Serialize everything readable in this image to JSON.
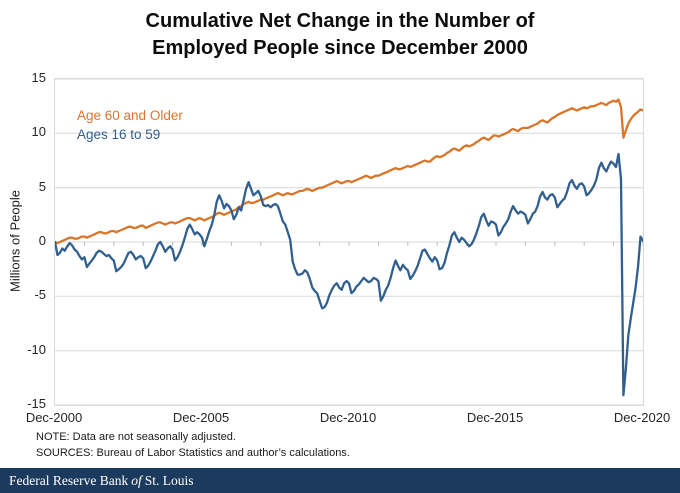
{
  "title": {
    "line1": "Cumulative Net Change in the Number of",
    "line2": "Employed People since December 2000"
  },
  "chart_data": {
    "type": "line",
    "title": "Cumulative Net Change in the Number of Employed People since December 2000",
    "xlabel": "",
    "ylabel": "Millions of People",
    "ylim": [
      -15,
      15
    ],
    "yticks": [
      15,
      10,
      5,
      0,
      -5,
      -10,
      -15
    ],
    "x_unit": "month",
    "x_start": "Dec-2000",
    "x_end": "Dec-2020",
    "x_tick_labels": [
      "Dec-2000",
      "Dec-2005",
      "Dec-2010",
      "Dec-2015",
      "Dec-2020"
    ],
    "x_tick_interval_months": 60,
    "minor_tick_interval_months": 12,
    "grid": true,
    "grid_color": "#d9d9d9",
    "tick_color": "#bfbfbf",
    "legend_position": "top-left-inside",
    "series": [
      {
        "name": "Age 60 and Older",
        "color": "#d9762b",
        "values": [
          0.0,
          -0.1,
          0.0,
          0.1,
          0.2,
          0.3,
          0.4,
          0.4,
          0.3,
          0.3,
          0.4,
          0.5,
          0.5,
          0.4,
          0.5,
          0.6,
          0.7,
          0.8,
          0.9,
          0.9,
          0.8,
          0.8,
          0.9,
          1.0,
          1.0,
          0.9,
          1.0,
          1.1,
          1.2,
          1.3,
          1.4,
          1.4,
          1.3,
          1.3,
          1.4,
          1.5,
          1.5,
          1.3,
          1.4,
          1.5,
          1.6,
          1.7,
          1.8,
          1.8,
          1.7,
          1.6,
          1.7,
          1.8,
          1.8,
          1.7,
          1.8,
          1.9,
          2.0,
          2.1,
          2.2,
          2.2,
          2.1,
          2.0,
          2.1,
          2.2,
          2.1,
          2.0,
          2.1,
          2.2,
          2.3,
          2.4,
          2.6,
          2.7,
          2.6,
          2.5,
          2.6,
          2.7,
          2.8,
          2.9,
          3.0,
          3.2,
          3.3,
          3.5,
          3.6,
          3.7,
          3.6,
          3.6,
          3.7,
          3.8,
          3.9,
          3.9,
          4.0,
          4.1,
          4.2,
          4.3,
          4.4,
          4.5,
          4.4,
          4.3,
          4.4,
          4.5,
          4.4,
          4.4,
          4.5,
          4.6,
          4.7,
          4.7,
          4.8,
          4.9,
          4.8,
          4.7,
          4.8,
          4.9,
          5.0,
          5.0,
          5.1,
          5.2,
          5.3,
          5.4,
          5.5,
          5.6,
          5.5,
          5.4,
          5.5,
          5.6,
          5.6,
          5.5,
          5.6,
          5.7,
          5.8,
          5.9,
          6.0,
          6.1,
          6.0,
          5.9,
          6.0,
          6.1,
          6.1,
          6.2,
          6.3,
          6.4,
          6.5,
          6.6,
          6.7,
          6.8,
          6.7,
          6.7,
          6.8,
          6.9,
          7.0,
          6.9,
          7.0,
          7.1,
          7.2,
          7.3,
          7.4,
          7.5,
          7.4,
          7.4,
          7.6,
          7.8,
          7.9,
          7.8,
          7.9,
          8.0,
          8.2,
          8.3,
          8.5,
          8.6,
          8.5,
          8.4,
          8.6,
          8.8,
          8.9,
          8.8,
          8.9,
          9.0,
          9.2,
          9.3,
          9.5,
          9.6,
          9.5,
          9.4,
          9.6,
          9.8,
          9.8,
          9.7,
          9.8,
          9.9,
          10.0,
          10.1,
          10.3,
          10.4,
          10.3,
          10.2,
          10.4,
          10.5,
          10.5,
          10.5,
          10.6,
          10.7,
          10.8,
          10.9,
          11.1,
          11.2,
          11.1,
          11.0,
          11.2,
          11.4,
          11.5,
          11.7,
          11.8,
          11.9,
          12.0,
          12.1,
          12.2,
          12.3,
          12.2,
          12.1,
          12.2,
          12.3,
          12.4,
          12.3,
          12.4,
          12.5,
          12.5,
          12.6,
          12.7,
          12.8,
          12.7,
          12.6,
          12.8,
          12.9,
          13.0,
          12.9,
          13.1,
          12.4,
          9.6,
          10.3,
          10.9,
          11.3,
          11.6,
          11.8,
          12.0,
          12.2,
          12.1
        ]
      },
      {
        "name": "Ages 16 to 59",
        "color": "#31608f",
        "values": [
          0.0,
          -1.2,
          -1.0,
          -0.6,
          -0.8,
          -0.4,
          -0.1,
          -0.3,
          -0.7,
          -0.9,
          -1.3,
          -1.6,
          -1.4,
          -2.3,
          -2.0,
          -1.7,
          -1.4,
          -1.0,
          -0.8,
          -0.9,
          -1.1,
          -1.3,
          -1.2,
          -1.5,
          -1.7,
          -2.7,
          -2.5,
          -2.3,
          -2.0,
          -1.5,
          -1.0,
          -0.9,
          -1.2,
          -1.6,
          -1.4,
          -1.3,
          -1.5,
          -2.4,
          -2.2,
          -1.8,
          -1.3,
          -0.8,
          -0.2,
          0.0,
          -0.4,
          -0.9,
          -0.6,
          -0.4,
          -0.7,
          -1.7,
          -1.4,
          -0.9,
          -0.3,
          0.4,
          1.2,
          1.6,
          1.2,
          0.7,
          0.9,
          0.7,
          0.4,
          -0.4,
          0.3,
          1.0,
          1.6,
          2.5,
          3.7,
          4.3,
          3.8,
          3.1,
          3.5,
          3.3,
          2.9,
          2.1,
          2.5,
          3.2,
          2.9,
          3.9,
          4.9,
          5.5,
          4.9,
          4.3,
          4.5,
          4.7,
          4.2,
          3.4,
          3.3,
          3.4,
          3.2,
          3.4,
          3.5,
          3.3,
          2.6,
          1.9,
          1.6,
          0.9,
          0.2,
          -1.8,
          -2.5,
          -3.0,
          -3.0,
          -2.9,
          -2.6,
          -2.8,
          -3.4,
          -4.2,
          -4.5,
          -4.7,
          -5.4,
          -6.1,
          -6.0,
          -5.6,
          -4.9,
          -4.4,
          -4.0,
          -3.8,
          -4.2,
          -4.4,
          -3.8,
          -3.6,
          -3.8,
          -4.7,
          -4.5,
          -4.1,
          -3.9,
          -3.6,
          -3.3,
          -3.5,
          -3.7,
          -3.6,
          -3.3,
          -3.4,
          -3.6,
          -5.4,
          -5.0,
          -4.4,
          -4.0,
          -3.3,
          -2.4,
          -1.7,
          -2.2,
          -2.6,
          -2.1,
          -2.4,
          -2.6,
          -3.4,
          -3.1,
          -2.7,
          -2.2,
          -1.5,
          -0.8,
          -0.7,
          -1.1,
          -1.5,
          -1.8,
          -1.4,
          -1.7,
          -2.5,
          -2.4,
          -1.9,
          -1.0,
          -0.3,
          0.6,
          0.9,
          0.4,
          0.0,
          0.4,
          0.2,
          -0.1,
          -0.4,
          -0.2,
          0.2,
          0.8,
          1.5,
          2.3,
          2.6,
          2.0,
          1.5,
          1.9,
          1.8,
          1.6,
          0.6,
          0.9,
          1.4,
          1.7,
          2.1,
          2.8,
          3.3,
          2.9,
          2.6,
          2.8,
          2.7,
          2.5,
          1.7,
          2.1,
          2.6,
          2.8,
          3.3,
          4.2,
          4.6,
          4.1,
          3.9,
          4.3,
          4.4,
          4.1,
          3.2,
          3.5,
          3.8,
          4.0,
          4.6,
          5.4,
          5.7,
          5.2,
          4.9,
          5.3,
          5.4,
          5.1,
          4.3,
          4.5,
          4.8,
          5.2,
          5.8,
          6.8,
          7.3,
          6.8,
          6.5,
          7.0,
          7.4,
          7.2,
          6.9,
          8.1,
          5.8,
          -14.1,
          -11.6,
          -8.6,
          -7.0,
          -5.6,
          -4.2,
          -2.2,
          0.5,
          0.1
        ]
      }
    ]
  },
  "notes": {
    "note": "NOTE: Data are not seasonally adjusted.",
    "sources": "SOURCES: Bureau of Labor Statistics and author’s calculations."
  },
  "footer": {
    "org_prefix": "Federal Reserve Bank",
    "org_of": "of",
    "org_suffix": "St. Louis",
    "bar_color": "#1c3a5e"
  }
}
